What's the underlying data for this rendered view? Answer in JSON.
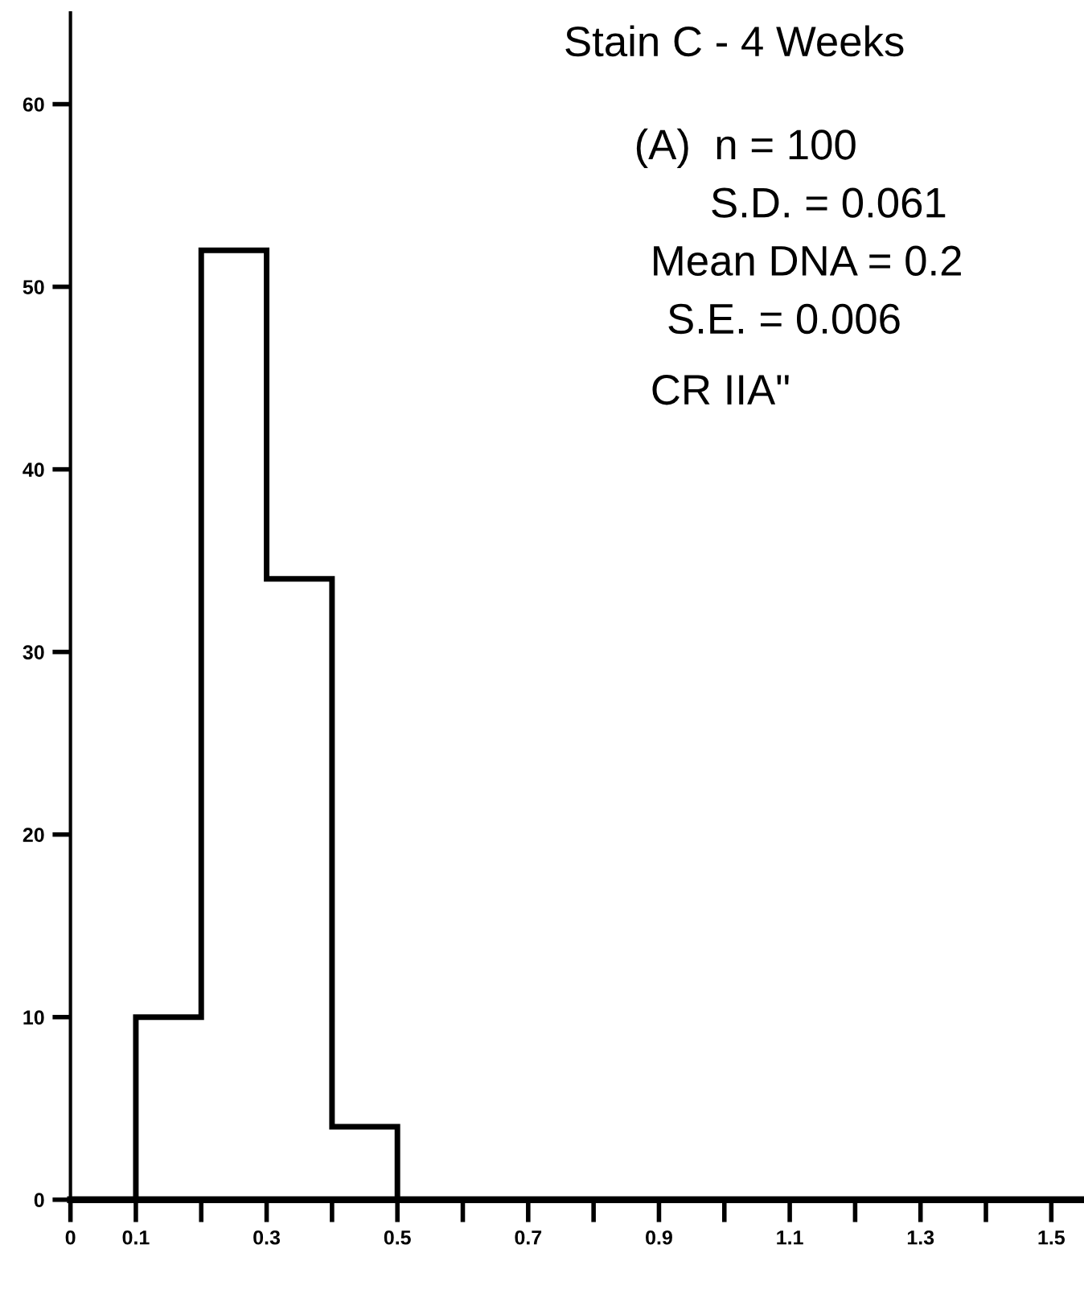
{
  "chart_data": {
    "type": "histogram",
    "title": "Stain C - 4 Weeks",
    "bins": [
      0.1,
      0.2,
      0.3,
      0.4,
      0.5
    ],
    "values": [
      10,
      52,
      34,
      4
    ],
    "color": "#000000",
    "xlim": [
      0,
      1.55
    ],
    "ylim": [
      0,
      65
    ],
    "xticks": [
      0,
      0.1,
      {
        "value": 0.2,
        "label": null
      },
      0.3,
      {
        "value": 0.4,
        "label": null
      },
      0.5,
      {
        "value": 0.6,
        "label": null
      },
      0.7,
      {
        "value": 0.8,
        "label": null
      },
      0.9,
      {
        "value": 1.0,
        "label": null
      },
      1.1,
      {
        "value": 1.2,
        "label": null
      },
      1.3,
      {
        "value": 1.4,
        "label": null
      },
      1.5
    ],
    "yticks": [
      0,
      10,
      20,
      30,
      40,
      50,
      60
    ],
    "grid": false,
    "annotations": [
      "(A)  n = 100",
      "S.D. = 0.061",
      "Mean DNA = 0.2",
      "S.E. = 0.006",
      "CR IIA\""
    ]
  }
}
